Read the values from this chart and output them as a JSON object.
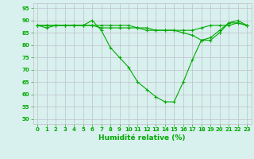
{
  "title": "",
  "xlabel": "Humidité relative (%)",
  "ylabel": "",
  "xlim": [
    -0.5,
    23.5
  ],
  "ylim": [
    48,
    97
  ],
  "yticks": [
    50,
    55,
    60,
    65,
    70,
    75,
    80,
    85,
    90,
    95
  ],
  "xticks": [
    0,
    1,
    2,
    3,
    4,
    5,
    6,
    7,
    8,
    9,
    10,
    11,
    12,
    13,
    14,
    15,
    16,
    17,
    18,
    19,
    20,
    21,
    22,
    23
  ],
  "bg_color": "#d8f0ee",
  "grid_color": "#c0c0c8",
  "line_color": "#00aa00",
  "line1": [
    88,
    87,
    88,
    88,
    88,
    88,
    90,
    86,
    79,
    75,
    71,
    65,
    62,
    59,
    57,
    57,
    65,
    74,
    82,
    83,
    86,
    89,
    90,
    88
  ],
  "line2": [
    88,
    88,
    88,
    88,
    88,
    88,
    88,
    87,
    87,
    87,
    87,
    87,
    87,
    86,
    86,
    86,
    86,
    86,
    87,
    88,
    88,
    88,
    89,
    88
  ],
  "line3": [
    88,
    88,
    88,
    88,
    88,
    88,
    88,
    88,
    88,
    88,
    88,
    87,
    86,
    86,
    86,
    86,
    85,
    84,
    82,
    82,
    85,
    89,
    89,
    88
  ],
  "tick_fontsize": 5.0,
  "xlabel_fontsize": 6.5
}
